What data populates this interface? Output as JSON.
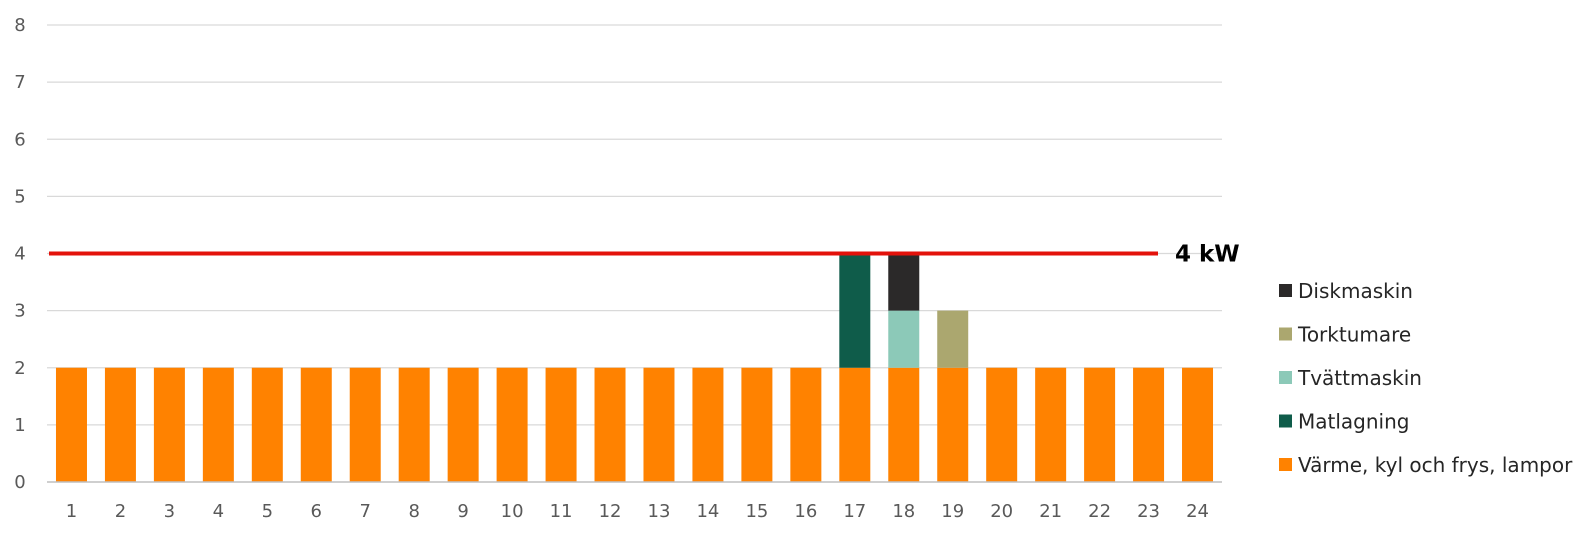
{
  "chart_data": {
    "type": "bar",
    "stacked": true,
    "title": "",
    "xlabel": "",
    "ylabel": "",
    "categories": [
      "1",
      "2",
      "3",
      "4",
      "5",
      "6",
      "7",
      "8",
      "9",
      "10",
      "11",
      "12",
      "13",
      "14",
      "15",
      "16",
      "17",
      "18",
      "19",
      "20",
      "21",
      "22",
      "23",
      "24"
    ],
    "ylim": [
      0,
      8
    ],
    "yticks": [
      "0",
      "1",
      "2",
      "3",
      "4",
      "5",
      "6",
      "7",
      "8"
    ],
    "grid": "horizontal",
    "legend_position": "right",
    "series": [
      {
        "name": "Värme, kyl och frys, lampor",
        "color": "#ff8200",
        "values": [
          2,
          2,
          2,
          2,
          2,
          2,
          2,
          2,
          2,
          2,
          2,
          2,
          2,
          2,
          2,
          2,
          2,
          2,
          2,
          2,
          2,
          2,
          2,
          2
        ]
      },
      {
        "name": "Matlagning",
        "color": "#0f5c4a",
        "values": [
          0,
          0,
          0,
          0,
          0,
          0,
          0,
          0,
          0,
          0,
          0,
          0,
          0,
          0,
          0,
          0,
          2,
          0,
          0,
          0,
          0,
          0,
          0,
          0
        ]
      },
      {
        "name": "Tvättmaskin",
        "color": "#8cc9b8",
        "values": [
          0,
          0,
          0,
          0,
          0,
          0,
          0,
          0,
          0,
          0,
          0,
          0,
          0,
          0,
          0,
          0,
          0,
          1,
          0,
          0,
          0,
          0,
          0,
          0
        ]
      },
      {
        "name": "Torktumare",
        "color": "#aba76f",
        "values": [
          0,
          0,
          0,
          0,
          0,
          0,
          0,
          0,
          0,
          0,
          0,
          0,
          0,
          0,
          0,
          0,
          0,
          0,
          1,
          0,
          0,
          0,
          0,
          0
        ]
      },
      {
        "name": "Diskmaskin",
        "color": "#2b2929",
        "values": [
          0,
          0,
          0,
          0,
          0,
          0,
          0,
          0,
          0,
          0,
          0,
          0,
          0,
          0,
          0,
          0,
          0,
          1,
          0,
          0,
          0,
          0,
          0,
          0
        ]
      }
    ],
    "legend_order": [
      "Diskmaskin",
      "Torktumare",
      "Tvättmaskin",
      "Matlagning",
      "Värme, kyl och frys, lampor"
    ],
    "reference_line": {
      "value": 4,
      "label": "4 kW",
      "color": "#e3120b"
    },
    "grid_color": "#d9d9d9",
    "axis_color": "#bfbfbf"
  }
}
